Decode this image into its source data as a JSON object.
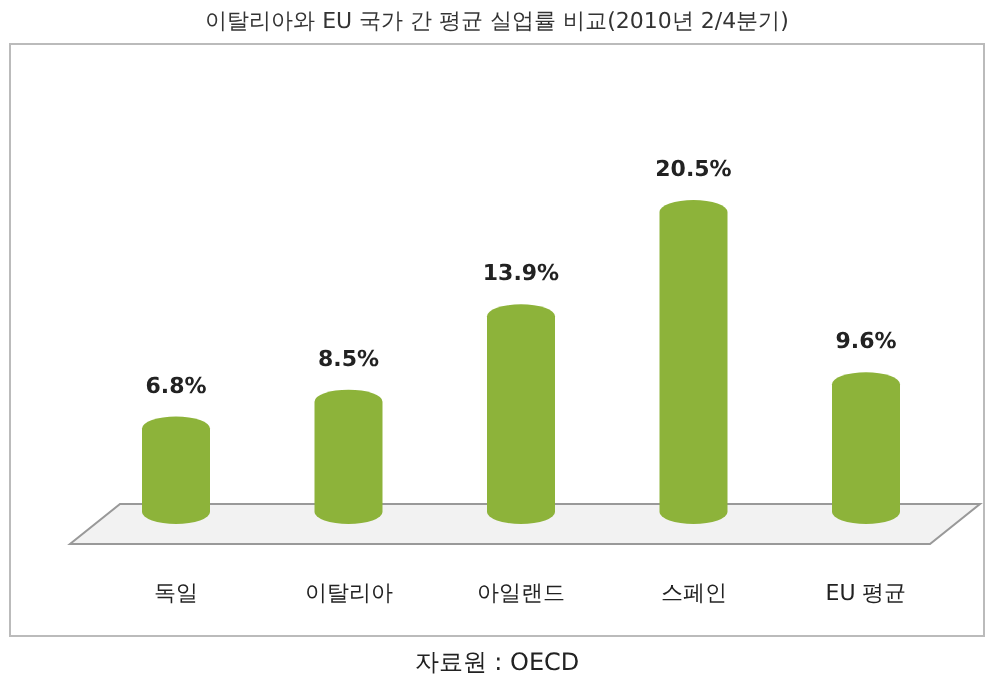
{
  "chart_data": {
    "type": "bar",
    "title": "이탈리아와 EU 국가 간 평균 실업률 비교(2010년 2/4분기)",
    "categories": [
      "독일",
      "이탈리아",
      "아일랜드",
      "스페인",
      "EU 평균"
    ],
    "values": [
      6.8,
      8.5,
      13.9,
      20.5,
      9.6
    ],
    "value_labels": [
      "6.8%",
      "8.5%",
      "13.9%",
      "20.5%",
      "9.6%"
    ],
    "color": "#8db33a",
    "annotations": [
      "자료원 : OECD"
    ]
  }
}
